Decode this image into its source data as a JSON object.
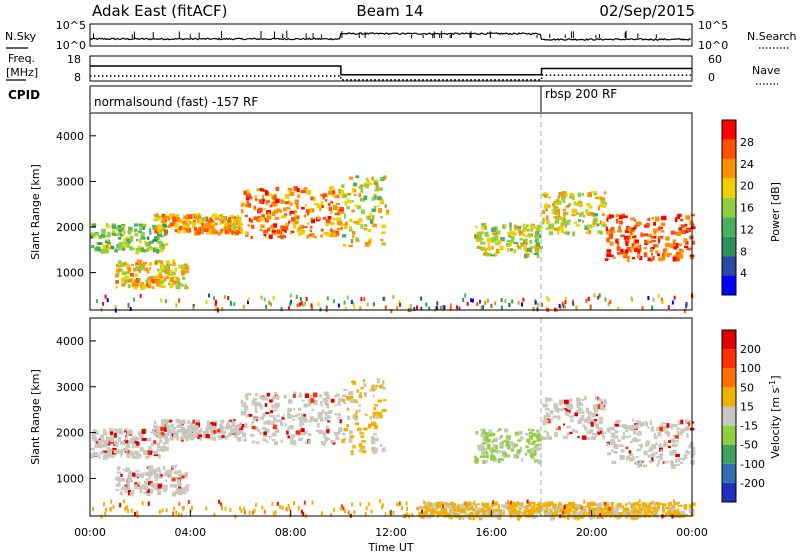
{
  "header": {
    "title": "Adak East (fitACF)",
    "beam": "Beam 14",
    "date": "02/Sep/2015"
  },
  "top_panel": {
    "left_label": "N.Sky",
    "left_ticks": [
      "10^5",
      "10^0"
    ],
    "right_label": "N.Search",
    "right_ticks": [
      "10^5",
      "10^0"
    ]
  },
  "freq_panel": {
    "left_label_1": "Freq.",
    "left_label_2": "[MHz]",
    "left_ticks": [
      "18",
      "8"
    ],
    "right_label": "Nave",
    "right_ticks": [
      "60",
      "0"
    ]
  },
  "cpid_panel": {
    "label": "CPID",
    "mode_1": "normalsound (fast) -157 RF",
    "mode_2": "rbsp 200 RF"
  },
  "x_axis": {
    "ticks": [
      "00:00",
      "04:00",
      "08:00",
      "12:00",
      "16:00",
      "20:00",
      "00:00"
    ],
    "label": "Time UT"
  },
  "power_panel": {
    "ylabel": "Slant Range [km]",
    "yticks": [
      "4000",
      "3000",
      "2000",
      "1000"
    ],
    "colorbar_label": "Power [dB]",
    "colorbar_ticks": [
      "28",
      "24",
      "20",
      "16",
      "12",
      "8",
      "4"
    ],
    "colorbar_colors": [
      "#0000ff",
      "#2a4aa0",
      "#2f8f5a",
      "#49b060",
      "#8fd040",
      "#f0d000",
      "#ff9000",
      "#ff5000",
      "#ff0000"
    ]
  },
  "velocity_panel": {
    "ylabel": "Slant Range [km]",
    "yticks": [
      "4000",
      "3000",
      "2000",
      "1000"
    ],
    "colorbar_label": "Velocity [m s",
    "colorbar_label_exp": "-1",
    "colorbar_label_end": "]",
    "colorbar_ticks": [
      "200",
      "100",
      "50",
      "15",
      "-15",
      "-50",
      "-100",
      "-200"
    ],
    "colorbar_colors": [
      "#2030c0",
      "#3070b0",
      "#40a060",
      "#90d040",
      "#c8c8c0",
      "#f0b000",
      "#ff7000",
      "#ff3000",
      "#e00000"
    ]
  },
  "chart_data": [
    {
      "type": "line",
      "panel": "N.Sky / N.Search",
      "x": [
        0,
        10,
        18,
        24
      ],
      "series_desc": "nsky level per mode interval",
      "y_log_range": [
        0,
        5
      ]
    },
    {
      "type": "line",
      "panel": "Freq / Nave",
      "freq_ylim": [
        8,
        18
      ],
      "nave_ylim": [
        0,
        60
      ],
      "x": [
        0,
        10,
        10,
        18,
        18,
        24
      ],
      "freq": [
        14,
        14,
        10.5,
        10.5,
        13,
        13
      ],
      "nave": [
        12,
        12,
        3,
        3,
        14,
        14
      ]
    },
    {
      "type": "heatmap",
      "panel": "Power",
      "xlim": [
        0,
        24
      ],
      "ylim": [
        180,
        4500
      ],
      "xlabel": "Time UT",
      "ylabel": "Slant Range [km]",
      "colorbar": "Power [dB]",
      "clim": [
        0,
        30
      ],
      "bands": [
        {
          "t0": 0.0,
          "t1": 3.0,
          "r0": 1500,
          "r1": 2100,
          "level": 14
        },
        {
          "t0": 1.0,
          "t1": 3.8,
          "r0": 700,
          "r1": 1300,
          "level": 20
        },
        {
          "t0": 2.5,
          "t1": 6.0,
          "r0": 1900,
          "r1": 2300,
          "level": 22
        },
        {
          "t0": 6.0,
          "t1": 10.0,
          "r0": 1800,
          "r1": 2900,
          "level": 24
        },
        {
          "t0": 10.0,
          "t1": 11.8,
          "r0": 1600,
          "r1": 3200,
          "level": 18
        },
        {
          "t0": 15.3,
          "t1": 17.9,
          "r0": 1400,
          "r1": 2100,
          "level": 17
        },
        {
          "t0": 18.0,
          "t1": 20.5,
          "r0": 1900,
          "r1": 2800,
          "level": 18
        },
        {
          "t0": 20.5,
          "t1": 24.0,
          "r0": 1300,
          "r1": 2300,
          "level": 26
        }
      ]
    },
    {
      "type": "heatmap",
      "panel": "Velocity",
      "xlim": [
        0,
        24
      ],
      "ylim": [
        180,
        4500
      ],
      "xlabel": "Time UT",
      "ylabel": "Slant Range [km]",
      "colorbar": "Velocity [m s-1]",
      "clim": [
        -200,
        200
      ],
      "bands": [
        {
          "t0": 0.0,
          "t1": 3.0,
          "r0": 1500,
          "r1": 2100,
          "level": 0
        },
        {
          "t0": 1.0,
          "t1": 3.8,
          "r0": 700,
          "r1": 1300,
          "level": 0
        },
        {
          "t0": 2.5,
          "t1": 6.0,
          "r0": 1900,
          "r1": 2300,
          "level": 0
        },
        {
          "t0": 6.0,
          "t1": 10.0,
          "r0": 1800,
          "r1": 2900,
          "level": 0
        },
        {
          "t0": 10.0,
          "t1": 11.8,
          "r0": 1600,
          "r1": 3200,
          "level": -20
        },
        {
          "t0": 15.3,
          "t1": 17.9,
          "r0": 1400,
          "r1": 2100,
          "level": 20
        },
        {
          "t0": 18.0,
          "t1": 20.5,
          "r0": 1900,
          "r1": 2800,
          "level": 0
        },
        {
          "t0": 20.5,
          "t1": 24.0,
          "r0": 1300,
          "r1": 2300,
          "level": 0
        },
        {
          "t0": 13.0,
          "t1": 24.0,
          "r0": 180,
          "r1": 500,
          "level": -60
        }
      ]
    }
  ]
}
